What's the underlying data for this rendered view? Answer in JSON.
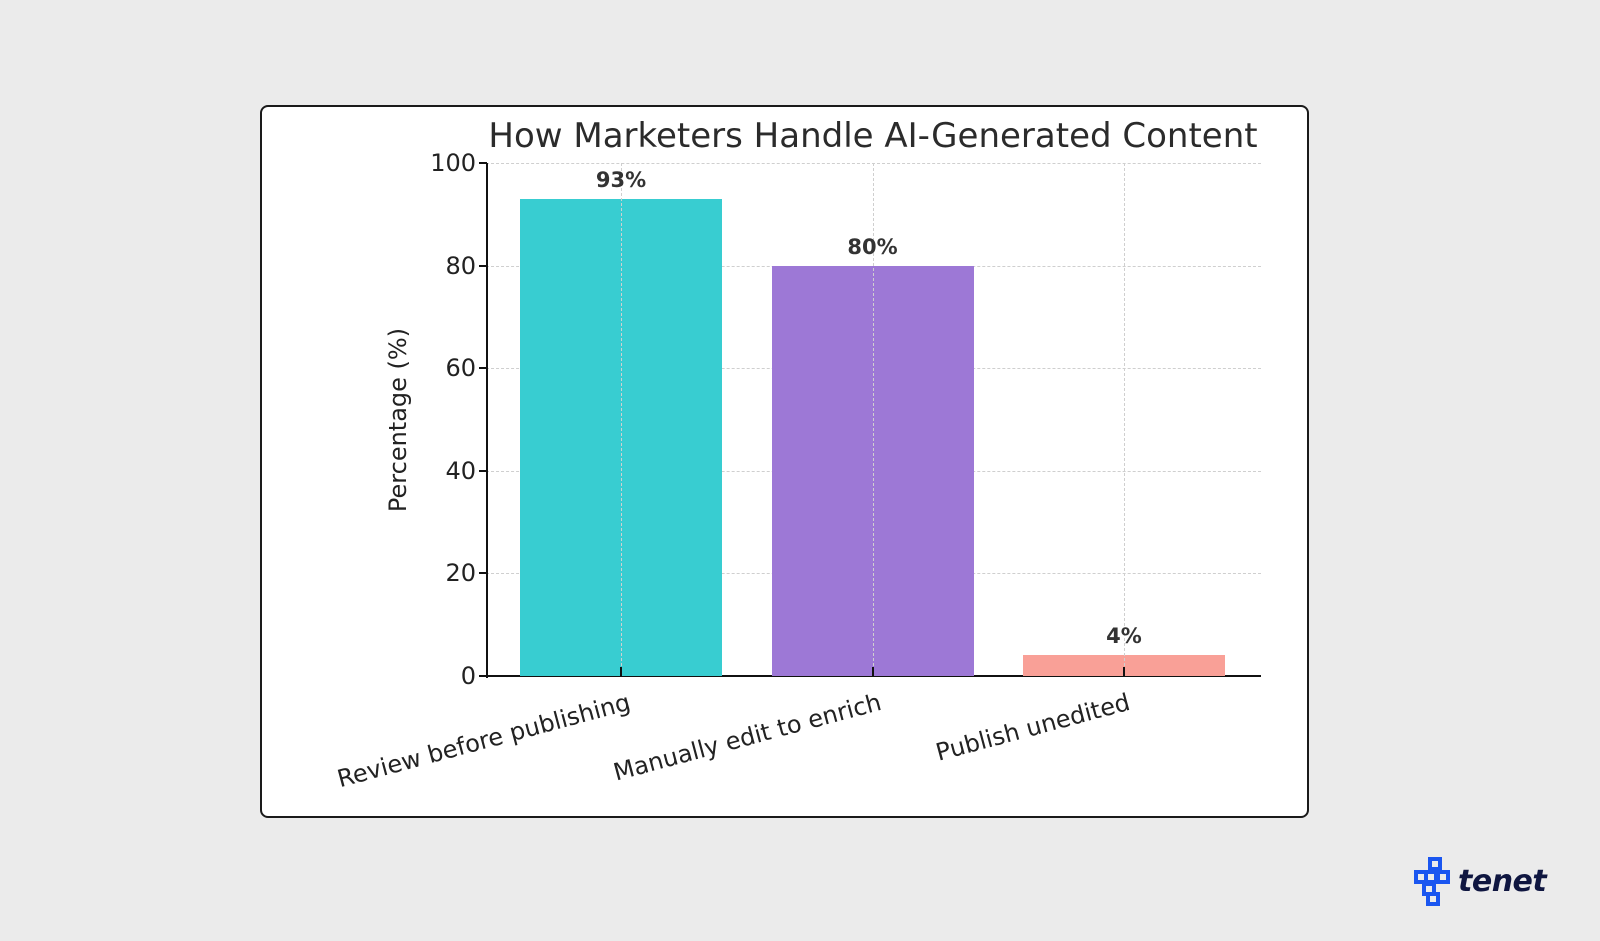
{
  "chart_data": {
    "type": "bar",
    "title": "How Marketers Handle AI-Generated Content",
    "xlabel": "",
    "ylabel": "Percentage (%)",
    "ylim": [
      0,
      100
    ],
    "yticks": [
      "0",
      "20",
      "40",
      "60",
      "80",
      "100"
    ],
    "grid": true,
    "legend": null,
    "categories": [
      "Review before publishing",
      "Manually edit to enrich",
      "Publish unedited"
    ],
    "values": [
      93,
      80,
      4
    ],
    "data_labels": [
      "93%",
      "80%",
      "4%"
    ],
    "colors": [
      "#38cdd1",
      "#9d78d6",
      "#f9a097"
    ]
  },
  "branding": {
    "logo_text": "tenet",
    "logo_color": "#1a56f0"
  }
}
